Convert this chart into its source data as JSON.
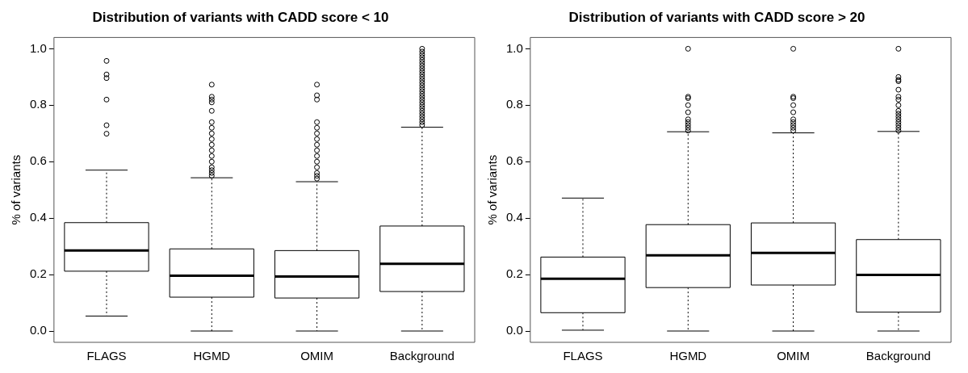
{
  "chart_data": [
    {
      "type": "box",
      "title": "Distribution of variants with CADD score < 10",
      "ylabel": "% of variants",
      "categories": [
        "FLAGS",
        "HGMD",
        "OMIM",
        "Background"
      ],
      "ylim": [
        -0.04,
        1.04
      ],
      "yticks": [
        {
          "value": 0,
          "label": "0.0"
        },
        {
          "value": 0.2,
          "label": "0.2"
        },
        {
          "value": 0.4,
          "label": "0.4"
        },
        {
          "value": 0.6,
          "label": "0.6"
        },
        {
          "value": 0.8,
          "label": "0.8"
        },
        {
          "value": 1,
          "label": "1.0"
        }
      ],
      "grid": false,
      "legend": false,
      "boxes": [
        {
          "low": 0.053,
          "q1": 0.212,
          "median": 0.285,
          "q3": 0.384,
          "high": 0.57,
          "outliers": [
            0.957,
            0.909,
            0.896,
            0.82,
            0.729,
            0.699
          ]
        },
        {
          "low": 0,
          "q1": 0.12,
          "median": 0.196,
          "q3": 0.291,
          "high": 0.543,
          "outliers": [
            0.873,
            0.83,
            0.82,
            0.81,
            0.78,
            0.74,
            0.72,
            0.7,
            0.68,
            0.66,
            0.64,
            0.62,
            0.6,
            0.58,
            0.57,
            0.56,
            0.55
          ]
        },
        {
          "low": 0,
          "q1": 0.117,
          "median": 0.193,
          "q3": 0.285,
          "high": 0.529,
          "outliers": [
            0.873,
            0.835,
            0.82,
            0.74,
            0.72,
            0.7,
            0.68,
            0.66,
            0.64,
            0.62,
            0.6,
            0.58,
            0.56,
            0.55,
            0.54
          ]
        },
        {
          "low": 0,
          "q1": 0.14,
          "median": 0.238,
          "q3": 0.372,
          "high": 0.722,
          "outliers": [
            1.0,
            0.99,
            0.98,
            0.97,
            0.96,
            0.95,
            0.94,
            0.93,
            0.92,
            0.91,
            0.9,
            0.89,
            0.88,
            0.87,
            0.86,
            0.85,
            0.84,
            0.83,
            0.82,
            0.81,
            0.8,
            0.79,
            0.78,
            0.77,
            0.76,
            0.75,
            0.74,
            0.73
          ]
        }
      ]
    },
    {
      "type": "box",
      "title": "Distribution of variants with CADD score > 20",
      "ylabel": "% of variants",
      "categories": [
        "FLAGS",
        "HGMD",
        "OMIM",
        "Background"
      ],
      "ylim": [
        -0.04,
        1.04
      ],
      "yticks": [
        {
          "value": 0,
          "label": "0.0"
        },
        {
          "value": 0.2,
          "label": "0.2"
        },
        {
          "value": 0.4,
          "label": "0.4"
        },
        {
          "value": 0.6,
          "label": "0.6"
        },
        {
          "value": 0.8,
          "label": "0.8"
        },
        {
          "value": 1,
          "label": "1.0"
        }
      ],
      "grid": false,
      "legend": false,
      "boxes": [
        {
          "low": 0.003,
          "q1": 0.065,
          "median": 0.185,
          "q3": 0.262,
          "high": 0.471
        },
        {
          "low": 0,
          "q1": 0.154,
          "median": 0.268,
          "q3": 0.377,
          "high": 0.706,
          "outliers": [
            1.0,
            0.83,
            0.825,
            0.8,
            0.775,
            0.75,
            0.74,
            0.73,
            0.72,
            0.71
          ]
        },
        {
          "low": 0,
          "q1": 0.163,
          "median": 0.277,
          "q3": 0.383,
          "high": 0.702,
          "outliers": [
            1.0,
            0.83,
            0.825,
            0.8,
            0.775,
            0.75,
            0.74,
            0.73,
            0.72,
            0.71
          ]
        },
        {
          "low": 0,
          "q1": 0.067,
          "median": 0.199,
          "q3": 0.324,
          "high": 0.707,
          "outliers": [
            1.0,
            0.9,
            0.89,
            0.885,
            0.855,
            0.83,
            0.82,
            0.8,
            0.78,
            0.77,
            0.76,
            0.75,
            0.74,
            0.73,
            0.72,
            0.71
          ]
        }
      ]
    }
  ]
}
